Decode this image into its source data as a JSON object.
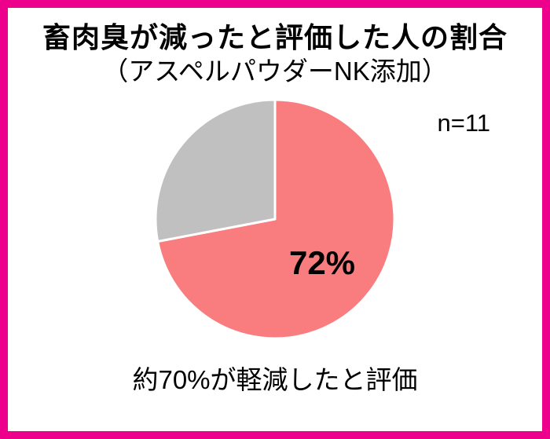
{
  "frame": {
    "border_color": "#EC008C",
    "background": "#FFFFFF"
  },
  "header": {
    "title": "畜肉臭が減ったと評価した人の割合",
    "subtitle": "（アスペルパウダーNK添加）"
  },
  "chart_data": {
    "type": "pie",
    "title": "畜肉臭が減ったと評価した人の割合（アスペルパウダーNK添加）",
    "sample_label": "n=11",
    "start_angle_deg": 0,
    "direction": "clockwise",
    "slices": [
      {
        "label": "72%",
        "value": 72,
        "color": "#F97C7E"
      },
      {
        "label": "",
        "value": 28,
        "color": "#C0C0C0"
      }
    ],
    "annotation": "約70%が軽減したと評価",
    "legend": "none",
    "slice_border_color": "#FFFFFF"
  },
  "footer": {
    "caption": "約70%が軽減したと評価"
  }
}
